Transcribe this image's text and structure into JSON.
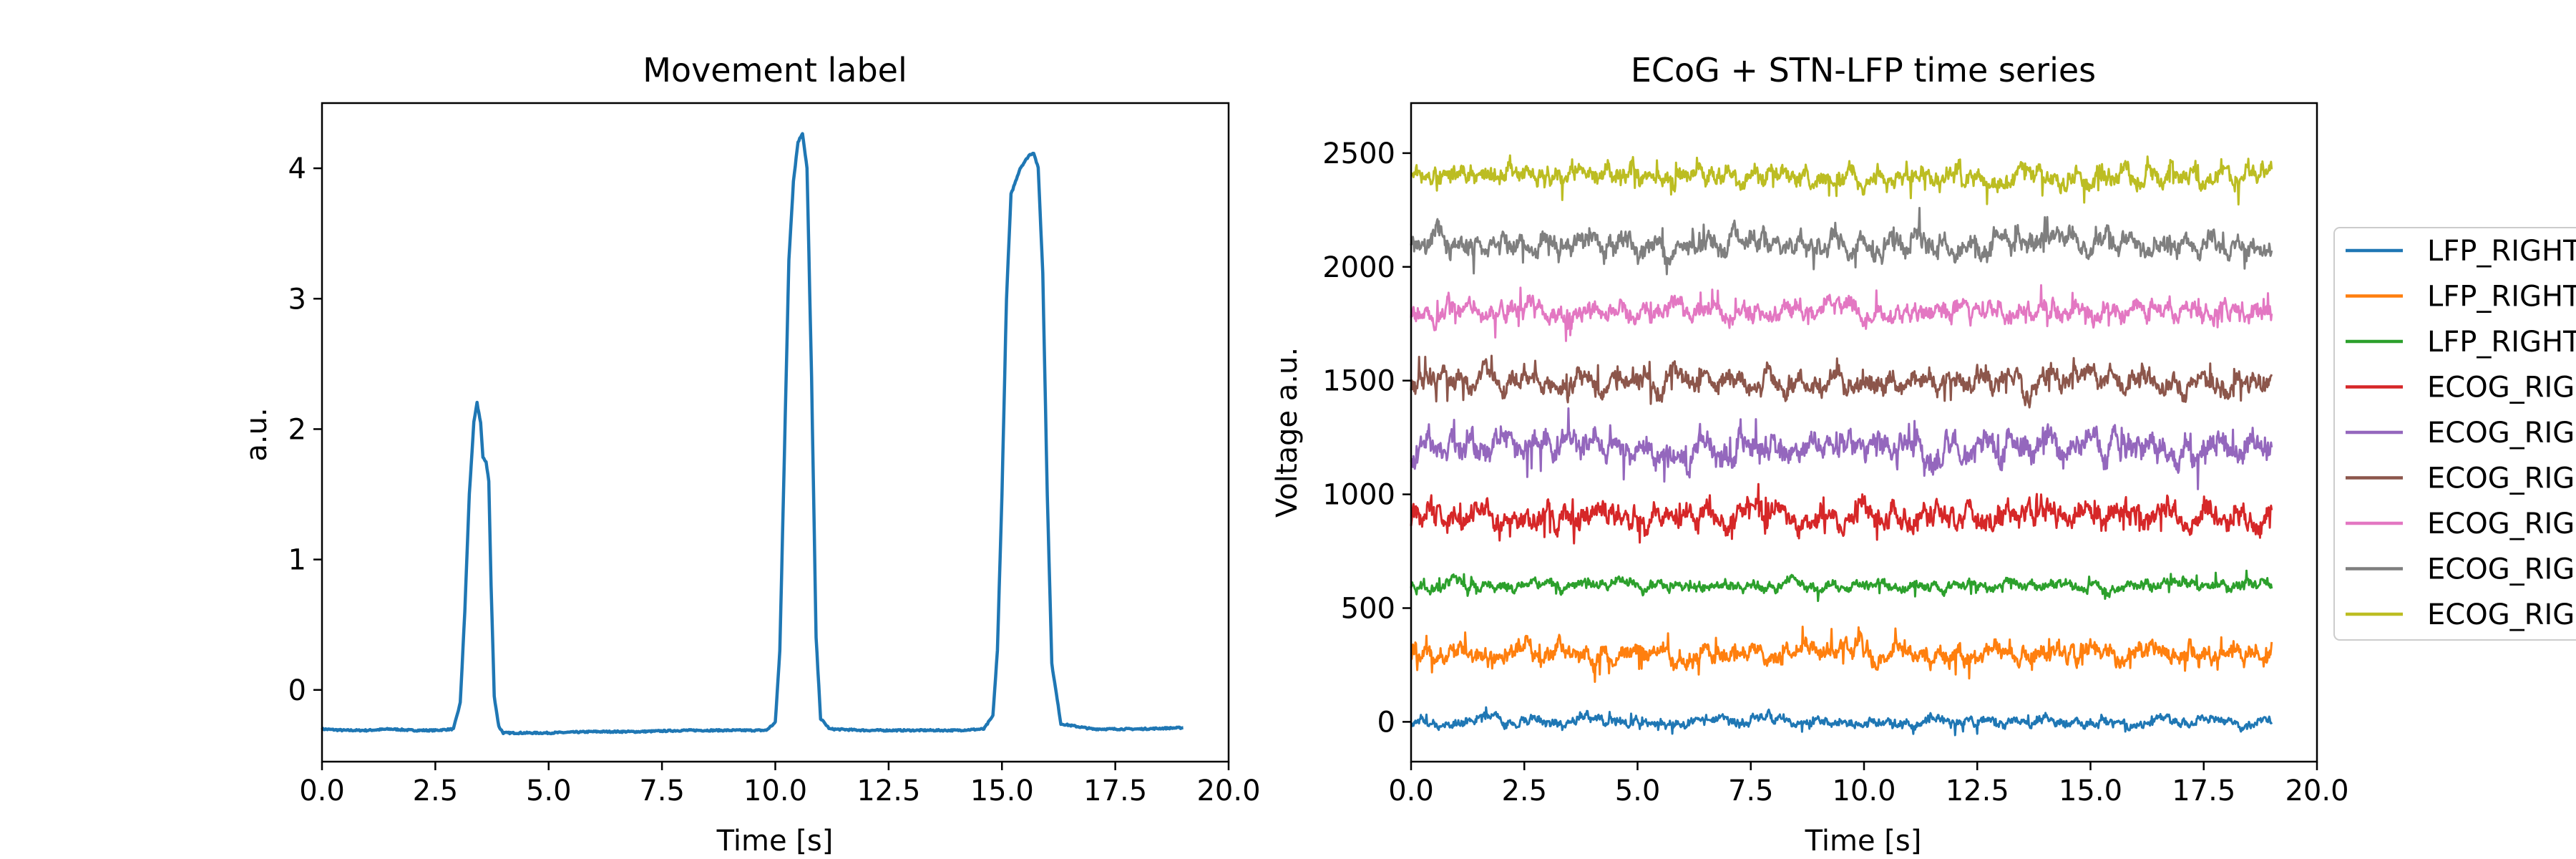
{
  "chart_data": [
    {
      "type": "line",
      "title": "Movement label",
      "xlabel": "Time [s]",
      "ylabel": "a.u.",
      "xlim": [
        0,
        20
      ],
      "ylim": [
        -0.55,
        4.5
      ],
      "x_ticks": [
        "0.0",
        "2.5",
        "5.0",
        "7.5",
        "10.0",
        "12.5",
        "15.0",
        "17.5",
        "20.0"
      ],
      "y_ticks": [
        "0",
        "1",
        "2",
        "3",
        "4"
      ],
      "grid": false,
      "color": "#1f77b4",
      "series": [
        {
          "x": [
            0,
            0.5,
            1.0,
            1.5,
            2.0,
            2.5,
            2.9,
            3.05,
            3.15,
            3.25,
            3.35,
            3.42,
            3.5,
            3.55,
            3.62,
            3.68,
            3.73,
            3.8,
            3.9,
            4.0,
            4.3,
            5.0,
            6.0,
            7.0,
            8.0,
            9.0,
            9.8,
            10.0,
            10.1,
            10.2,
            10.3,
            10.4,
            10.5,
            10.6,
            10.7,
            10.8,
            10.9,
            11.0,
            11.2,
            12.0,
            13.0,
            14.0,
            14.6,
            14.8,
            14.9,
            15.0,
            15.1,
            15.2,
            15.4,
            15.5,
            15.6,
            15.7,
            15.8,
            15.9,
            16.0,
            16.1,
            16.3,
            17.0,
            18.0,
            19.0
          ],
          "y": [
            -0.3,
            -0.31,
            -0.31,
            -0.3,
            -0.31,
            -0.31,
            -0.3,
            -0.1,
            0.6,
            1.5,
            2.05,
            2.2,
            2.05,
            1.78,
            1.75,
            1.6,
            0.8,
            -0.05,
            -0.28,
            -0.33,
            -0.33,
            -0.33,
            -0.32,
            -0.32,
            -0.31,
            -0.31,
            -0.31,
            -0.25,
            0.3,
            1.8,
            3.3,
            3.9,
            4.2,
            4.27,
            4.0,
            2.4,
            0.4,
            -0.22,
            -0.3,
            -0.31,
            -0.31,
            -0.31,
            -0.3,
            -0.2,
            0.3,
            1.5,
            3.0,
            3.8,
            4.0,
            4.05,
            4.1,
            4.12,
            4.0,
            3.2,
            1.5,
            0.2,
            -0.26,
            -0.3,
            -0.3,
            -0.29
          ]
        }
      ]
    },
    {
      "type": "line",
      "title": "ECoG + STN-LFP time series",
      "xlabel": "Time [s]",
      "ylabel": "Voltage a.u.",
      "xlim": [
        0,
        20
      ],
      "ylim": [
        -175,
        2720
      ],
      "x_ticks": [
        "0.0",
        "2.5",
        "5.0",
        "7.5",
        "10.0",
        "12.5",
        "15.0",
        "17.5",
        "20.0"
      ],
      "y_ticks": [
        "0",
        "500",
        "1000",
        "1500",
        "2000",
        "2500"
      ],
      "grid": false,
      "legend_position": "right, outside",
      "x_range": [
        0,
        19
      ],
      "series": [
        {
          "name": "LFP_RIGHT",
          "offset": 0,
          "amplitude": 22,
          "color": "#1f77b4"
        },
        {
          "name": "LFP_RIGHT",
          "offset": 300,
          "amplitude": 45,
          "color": "#ff7f0e"
        },
        {
          "name": "LFP_RIGHT",
          "offset": 600,
          "amplitude": 25,
          "color": "#2ca02c"
        },
        {
          "name": "ECOG_RIG",
          "offset": 900,
          "amplitude": 60,
          "color": "#d62728"
        },
        {
          "name": "ECOG_RIG",
          "offset": 1200,
          "amplitude": 65,
          "color": "#9467bd"
        },
        {
          "name": "ECOG_RIG",
          "offset": 1500,
          "amplitude": 50,
          "color": "#8c564b"
        },
        {
          "name": "ECOG_RIG",
          "offset": 1800,
          "amplitude": 45,
          "color": "#e377c2"
        },
        {
          "name": "ECOG_RIG",
          "offset": 2100,
          "amplitude": 50,
          "color": "#7f7f7f"
        },
        {
          "name": "ECOG_RIG",
          "offset": 2400,
          "amplitude": 45,
          "color": "#bcbd22"
        }
      ]
    }
  ]
}
